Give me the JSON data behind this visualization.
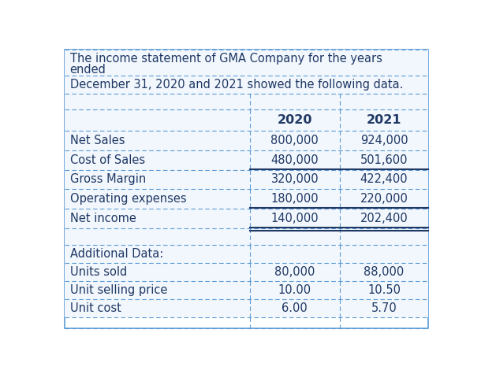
{
  "title_line1": "The income statement of GMA Company for the years",
  "title_line2": "ended",
  "title_line3": "December 31, 2020 and 2021 showed the following data.",
  "col_headers": [
    "",
    "2020",
    "2021"
  ],
  "rows": [
    {
      "label": "Net Sales",
      "v2020": "800,000",
      "v2021": "924,000",
      "line_below": false,
      "double_below": false
    },
    {
      "label": "Cost of Sales",
      "v2020": "480,000",
      "v2021": "501,600",
      "line_below": true,
      "double_below": false
    },
    {
      "label": "Gross Margin",
      "v2020": "320,000",
      "v2021": "422,400",
      "line_below": false,
      "double_below": false
    },
    {
      "label": "Operating expenses",
      "v2020": "180,000",
      "v2021": "220,000",
      "line_below": true,
      "double_below": false
    },
    {
      "label": "Net income",
      "v2020": "140,000",
      "v2021": "202,400",
      "line_below": false,
      "double_below": true
    }
  ],
  "additional_rows": [
    {
      "label": "Additional Data:",
      "v2020": "",
      "v2021": ""
    },
    {
      "label": "Units sold",
      "v2020": "80,000",
      "v2021": "88,000"
    },
    {
      "label": "Unit selling price",
      "v2020": "10.00",
      "v2021": "10.50"
    },
    {
      "label": "Unit cost",
      "v2020": "6.00",
      "v2021": "5.70"
    }
  ],
  "bg_color": "#ffffff",
  "cell_bg": "#f2f7fd",
  "text_color": "#1f3864",
  "dash_color": "#5b9bd5",
  "solid_color": "#1f3864",
  "outer_border_color": "#5b9bd5",
  "font_size": 10.5,
  "header_font_size": 11.5
}
